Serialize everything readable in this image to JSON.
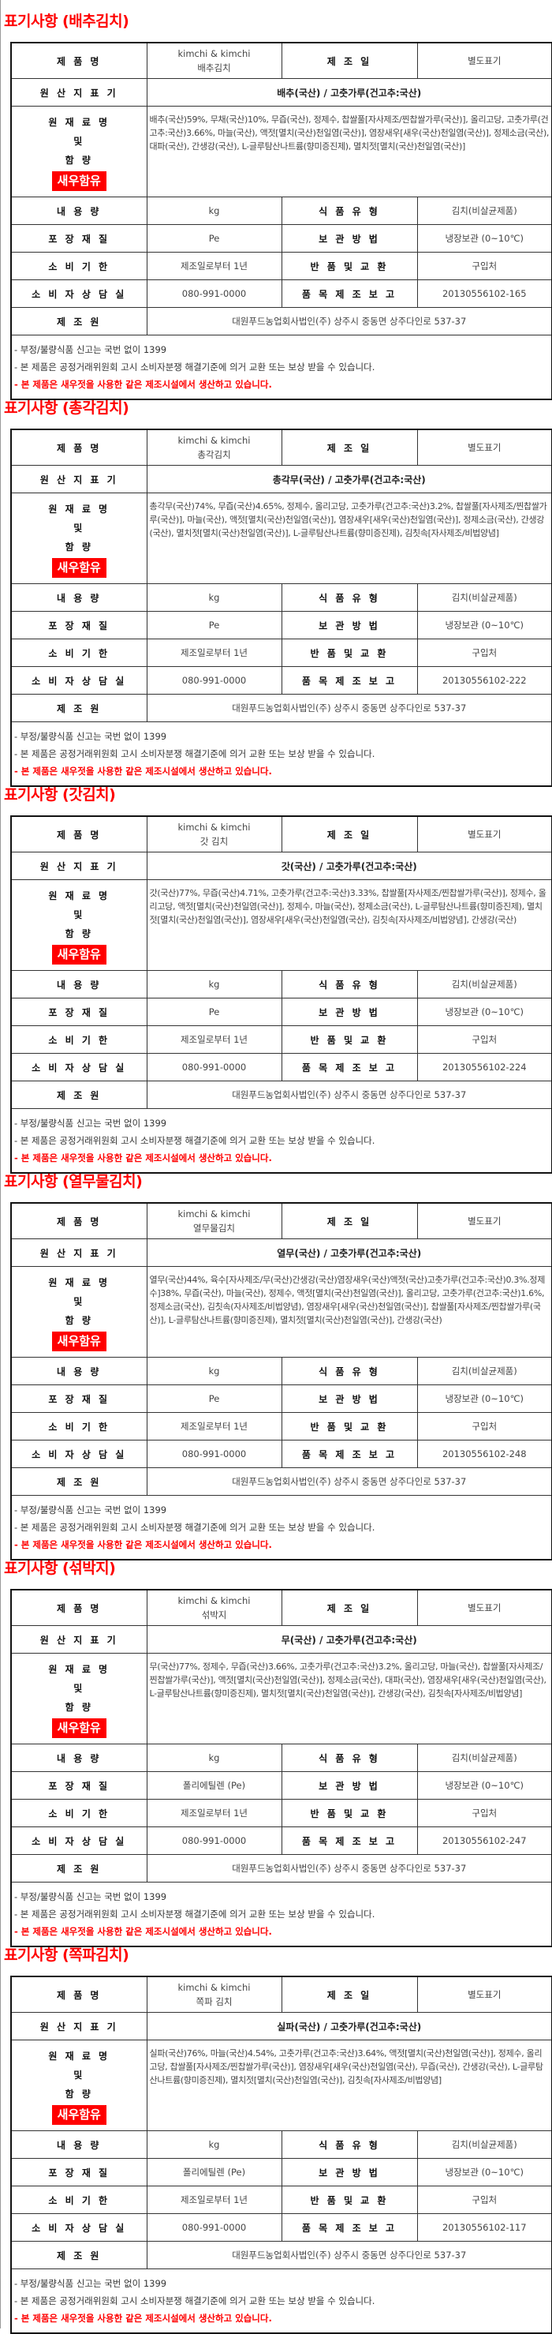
{
  "labels": {
    "product_name": "제 품 명",
    "mfg_date": "제 조 일",
    "origin": "원 산 지 표 기",
    "ingredients_1": "원 재 료 명",
    "ingredients_2": "및",
    "ingredients_3": "함 량",
    "shrimp_badge": "새우함유",
    "volume": "내 용 량",
    "food_type": "식 품 유 형",
    "packaging": "포 장 재 질",
    "storage": "보 관 방 법",
    "expiry": "소 비 기 한",
    "returns": "반 품 및 교 환",
    "consumer_center": "소 비 자 상 담 실",
    "report_no": "품 목 제 조 보 고",
    "manufacturer": "제 조 원"
  },
  "common": {
    "brand": "kimchi & kimchi",
    "mfg_date": "별도표기",
    "volume": "kg",
    "food_type": "김치(비살균제품)",
    "storage": "냉장보관 (0~10℃)",
    "expiry": "제조일로부터 1년",
    "returns": "구입처",
    "consumer_center": "080-991-0000",
    "manufacturer": "대원푸드농업회사법인(주) 상주시 중동면 상주다인로 537-37",
    "note_1": "- 부정/불량식품 신고는 국번 없이 1399",
    "note_2": "- 본 제품은 공정거래위원회 고시 소비자분쟁 해결기준에 의거 교환 또는 보상 받을 수 있습니다.",
    "note_3": "- 본 제품은 새우젓을 사용한 같은 제조시설에서 생산하고 있습니다."
  },
  "colors": {
    "title": "#ff0000",
    "badge": "#ff0000"
  },
  "products": [
    {
      "title": "표기사항 (배추김치)",
      "name": "배추김치",
      "origin": "배추(국산) / 고춧가루(건고추:국산)",
      "ingredients": "배추(국산)59%, 무채(국산)10%, 무즙(국산), 정제수, 찹쌀풀[자사제조/찐찹쌀가루(국산)], 올리고당, 고춧가루(건고추:국산)3.66%, 마늘(국산), 액젓[멸치(국산)천일염(국산)], 염장새우[새우(국산)천일염(국산)], 정제소금(국산), 대파(국산), 간생강(국산), L-글루탐산나트륨(향미증진제), 멸치젓[멸치(국산)천일염(국산)]",
      "packaging": "Pe",
      "report_no": "20130556102-165"
    },
    {
      "title": "표기사항 (총각김치)",
      "name": "총각김치",
      "origin": "총각무(국산) / 고춧가루(건고추:국산)",
      "ingredients": "총각무(국산)74%, 무즙(국산)4.65%, 정제수, 올리고당, 고춧가루(건고추:국산)3.2%, 찹쌀풀[자사제조/찐찹쌀가루(국산)], 마늘(국산), 액젓[멸치(국산)천일염(국산)], 염장새우[새우(국산)천일염(국산)], 정제소금(국산), 간생강(국산), 멸치젓[멸치(국산)천일염(국산)], L-글루탐산나트륨(향미증진제), 김칫속[자사제조/비법양념]",
      "packaging": "Pe",
      "report_no": "20130556102-222"
    },
    {
      "title": "표기사항 (갓김치)",
      "name": "갓 김치",
      "origin": "갓(국산) / 고춧가루(건고추:국산)",
      "ingredients": "갓(국산)77%, 무즙(국산)4.71%, 고춧가루(건고추:국산)3.33%, 찹쌀풀[자사제조/찐찹쌀가루(국산)], 정제수, 올리고당, 액젓[멸치(국산)천일염(국산)], 정제수, 마늘(국산), 정제소금(국산), L-글루탐산나트륨(향미증진제), 멸치젓[멸치(국산)천일염(국산)], 염장새우[새우(국산)천일염(국산), 김칫속[자사제조/비법양념], 간생강(국산)",
      "packaging": "Pe",
      "report_no": "20130556102-224"
    },
    {
      "title": "표기사항 (열무물김치)",
      "name": "열무물김치",
      "origin": "열무(국산) / 고춧가루(건고추:국산)",
      "ingredients": "열무(국산)44%, 육수[자사제조/무(국산)간생강(국산)염장새우(국산)액젓(국산)고춧가루(건고추:국산)0.3%.정제수]38%, 무즙(국산), 마늘(국산), 정제수, 액젓[멸치(국산)천일염(국산)], 올리고당, 고춧가루(건고추:국산)1.6%, 정제소금(국산), 김칫속(자사제조/비법양념), 염장새우[새우(국산)천일염(국산)], 찹쌀풀[자사제조/찐찹쌀가루(국산)], L-글루탐산나트륨(향미증진제), 멸치젓[멸치(국산)천일염(국산)], 간생강(국산)",
      "packaging": "Pe",
      "report_no": "20130556102-248"
    },
    {
      "title": "표기사항 (섞박지)",
      "name": "섞박지",
      "origin": "무(국산) / 고춧가루(건고추:국산)",
      "ingredients": "무(국산)77%, 정제수, 무즙(국산)3.66%, 고춧가루(건고추:국산)3.2%, 올리고당, 마늘(국산), 찹쌀풀[자사제조/찐찹쌀가루(국산)], 액젓[멸치(국산)천일염(국산)], 정제소금(국산), 대파(국산), 염장새우[새우(국산)천일염(국산), L-글루탐산나트륨(향미증진제), 멸치젓[멸치(국산)천일염(국산)], 간생강(국산), 김칫속[자사제조/비법양념]",
      "packaging": "폴리에틸렌 (Pe)",
      "report_no": "20130556102-247"
    },
    {
      "title": "표기사항 (쪽파김치)",
      "name": "쪽파 김치",
      "origin": "실파(국산) / 고춧가루(건고추:국산)",
      "ingredients": "실파(국산)76%, 마늘(국산)4.54%, 고춧가루(건고추:국산)3.64%, 액젓[멸치(국산)천일염(국산)], 정제수, 올리고당, 찹쌀풀[자사제조/찐찹쌀가루(국산)], 염장새우[새우(국산)천일염(국산), 무즙(국산), 간생강(국산), L-글루탐산나트륨(향미증진제), 멸치젓[멸치(국산)천일염(국산)], 김칫속[자사제조/비법양념]",
      "packaging": "폴리에틸렌 (Pe)",
      "report_no": "20130556102-117"
    }
  ]
}
